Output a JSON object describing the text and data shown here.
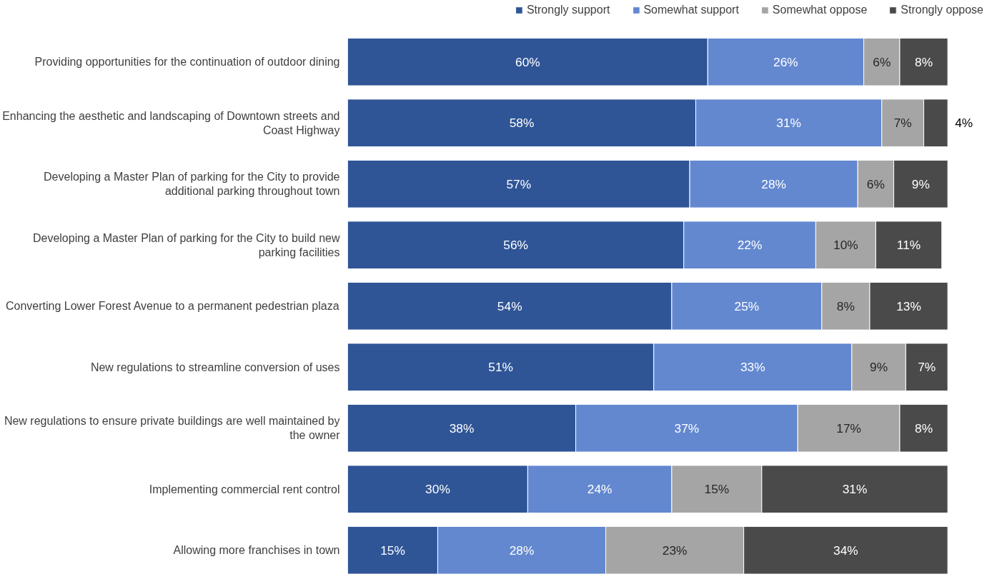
{
  "chart_data": {
    "type": "bar",
    "orientation": "horizontal",
    "stacked": true,
    "legend": "top",
    "xlim": [
      0,
      100
    ],
    "tick_labels": "y",
    "grid": false,
    "categories": [
      "Providing opportunities for the continuation of outdoor dining",
      "Enhancing the aesthetic and landscaping of Downtown streets and Coast Highway",
      "Developing a Master Plan of parking for the City to provide additional parking throughout town",
      "Developing a Master Plan of parking for the City to build new parking facilities",
      "Converting Lower Forest Avenue to a permanent pedestrian plaza",
      "New regulations to streamline conversion of uses",
      "New regulations to ensure private buildings are well maintained by the owner",
      "Implementing commercial rent control",
      "Allowing more franchises in town"
    ],
    "series": [
      {
        "name": "Strongly support",
        "color": "#2f5597",
        "values": [
          60,
          58,
          57,
          56,
          54,
          51,
          38,
          30,
          15
        ],
        "value_labels": [
          "60%",
          "58%",
          "57%",
          "56%",
          "54%",
          "51%",
          "38%",
          "30%",
          "15%"
        ]
      },
      {
        "name": "Somewhat support",
        "color": "#6388d0",
        "values": [
          26,
          31,
          28,
          22,
          25,
          33,
          37,
          24,
          28
        ],
        "value_labels": [
          "26%",
          "31%",
          "28%",
          "22%",
          "25%",
          "33%",
          "37%",
          "24%",
          "28%"
        ]
      },
      {
        "name": "Somewhat oppose",
        "color": "#a5a5a5",
        "values": [
          6,
          7,
          6,
          10,
          8,
          9,
          17,
          15,
          23
        ],
        "value_labels": [
          "6%",
          "7%",
          "6%",
          "10%",
          "8%",
          "9%",
          "17%",
          "15%",
          "23%"
        ]
      },
      {
        "name": "Strongly oppose",
        "color": "#4a4a4a",
        "values": [
          8,
          4,
          9,
          11,
          13,
          7,
          8,
          31,
          34
        ],
        "value_labels": [
          "8%",
          "4%",
          "9%",
          "11%",
          "13%",
          "7%",
          "8%",
          "31%",
          "34%"
        ]
      }
    ]
  }
}
